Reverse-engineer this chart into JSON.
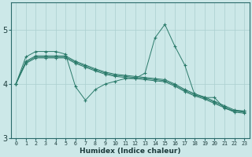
{
  "xlabel": "Humidex (Indice chaleur)",
  "xlim": [
    -0.5,
    23.5
  ],
  "ylim": [
    3,
    5.5
  ],
  "yticks": [
    3,
    4,
    5
  ],
  "xticks": [
    0,
    1,
    2,
    3,
    4,
    5,
    6,
    7,
    8,
    9,
    10,
    11,
    12,
    13,
    14,
    15,
    16,
    17,
    18,
    19,
    20,
    21,
    22,
    23
  ],
  "bg_color": "#cce8e8",
  "grid_color": "#aacfcf",
  "line_color": "#2a7a6a",
  "series_jagged": [
    4.0,
    4.5,
    4.6,
    4.6,
    4.6,
    4.55,
    3.95,
    3.7,
    3.9,
    4.0,
    4.05,
    4.1,
    4.1,
    4.2,
    4.85,
    5.1,
    4.7,
    4.35,
    3.8,
    3.75,
    3.75,
    3.55,
    3.5,
    3.5
  ],
  "series_line1": [
    4.0,
    4.42,
    4.52,
    4.52,
    4.52,
    4.52,
    4.42,
    4.35,
    4.28,
    4.22,
    4.18,
    4.16,
    4.14,
    4.12,
    4.1,
    4.08,
    4.0,
    3.9,
    3.82,
    3.76,
    3.68,
    3.6,
    3.52,
    3.5
  ],
  "series_line2": [
    4.0,
    4.4,
    4.5,
    4.5,
    4.5,
    4.5,
    4.4,
    4.33,
    4.26,
    4.2,
    4.16,
    4.14,
    4.12,
    4.1,
    4.08,
    4.06,
    3.98,
    3.88,
    3.8,
    3.74,
    3.66,
    3.58,
    3.5,
    3.48
  ],
  "series_line3": [
    4.0,
    4.38,
    4.48,
    4.48,
    4.48,
    4.48,
    4.38,
    4.31,
    4.24,
    4.18,
    4.14,
    4.12,
    4.1,
    4.08,
    4.06,
    4.04,
    3.96,
    3.86,
    3.78,
    3.72,
    3.64,
    3.56,
    3.48,
    3.46
  ]
}
